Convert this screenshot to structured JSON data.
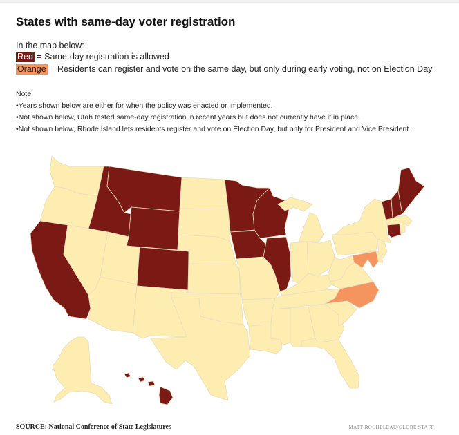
{
  "title": "States with same-day voter registration",
  "intro": "In the map below:",
  "legend": [
    {
      "swatch": "Red",
      "text": " = Same-day registration is allowed",
      "color": "#7b1a14"
    },
    {
      "swatch": "Orange",
      "text": " = Residents can register and vote on the same day, but only during early voting, not on Election Day",
      "color": "#f4955f"
    }
  ],
  "notes": [
    "Note:",
    "•Years shown below are either for when the policy was enacted or implemented.",
    "•Not shown below, Utah tested same-day registration in recent years but does not currently have it in place.",
    "•Not shown below, Rhode Island lets residents register and vote on Election Day, but only for President and Vice President."
  ],
  "map": {
    "colors": {
      "red": "#7b1a14",
      "orange": "#f4955f",
      "none": "#feedb0"
    },
    "states": {
      "WA": "none",
      "OR": "none",
      "CA": "red",
      "NV": "none",
      "ID": "red",
      "MT": "red",
      "WY": "red",
      "UT": "none",
      "AZ": "none",
      "CO": "red",
      "NM": "none",
      "ND": "none",
      "SD": "none",
      "NE": "none",
      "KS": "none",
      "OK": "none",
      "TX": "none",
      "MN": "red",
      "IA": "red",
      "MO": "none",
      "AR": "none",
      "LA": "none",
      "WI": "red",
      "IL": "red",
      "MI": "none",
      "IN": "none",
      "KY": "none",
      "TN": "none",
      "MS": "none",
      "AL": "none",
      "OH": "none",
      "WV": "none",
      "VA": "none",
      "NC": "orange",
      "SC": "none",
      "GA": "none",
      "FL": "none",
      "PA": "none",
      "NY": "none",
      "MD": "orange",
      "DE": "none",
      "NJ": "none",
      "CT": "red",
      "RI": "none",
      "MA": "none",
      "VT": "red",
      "NH": "red",
      "ME": "red",
      "AK": "none",
      "HI": "red"
    }
  },
  "source": "SOURCE: National Conference of State Legislatures",
  "credit": "MATT ROCHELEAU/GLOBE STAFF"
}
